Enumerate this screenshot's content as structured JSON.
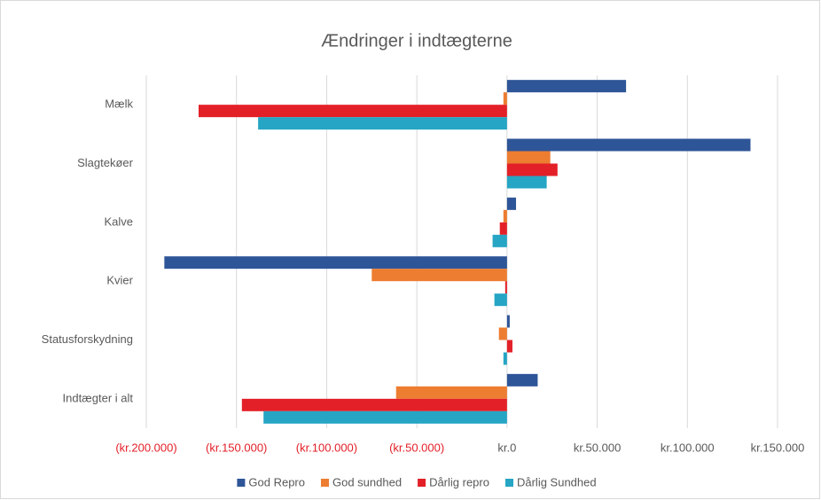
{
  "chart_data": {
    "type": "hbar",
    "title": "Ændringer i indtægterne",
    "categories": [
      "Mælk",
      "Slagtekøer",
      "Kalve",
      "Kvier",
      "Statusforskydning",
      "Indtægter i alt"
    ],
    "series": [
      {
        "name": "God Repro",
        "color": "#2e5597",
        "values": [
          66000,
          135000,
          5000,
          -190000,
          1500,
          17000
        ]
      },
      {
        "name": "God sundhed",
        "color": "#ed7d31",
        "values": [
          -2000,
          24000,
          -2000,
          -75000,
          -4500,
          -61500
        ]
      },
      {
        "name": "Dårlig repro",
        "color": "#e32028",
        "values": [
          -171000,
          28000,
          -4000,
          -1000,
          3000,
          -147000
        ]
      },
      {
        "name": "Dårlig Sundhed",
        "color": "#26a5c4",
        "values": [
          -138000,
          22000,
          -8000,
          -7000,
          -2000,
          -135000
        ]
      }
    ],
    "xlim": [
      -200000,
      150000
    ],
    "xticks": [
      {
        "value": -200000,
        "label": "(kr.200.000)"
      },
      {
        "value": -150000,
        "label": "(kr.150.000)"
      },
      {
        "value": -100000,
        "label": "(kr.100.000)"
      },
      {
        "value": -50000,
        "label": "(kr.50.000)"
      },
      {
        "value": 0,
        "label": "kr.0"
      },
      {
        "value": 50000,
        "label": "kr.50.000"
      },
      {
        "value": 100000,
        "label": "kr.100.000"
      },
      {
        "value": 150000,
        "label": "kr.150.000"
      }
    ],
    "negative_tick_color": "#e32028",
    "grid": true,
    "legend": "bottom"
  }
}
